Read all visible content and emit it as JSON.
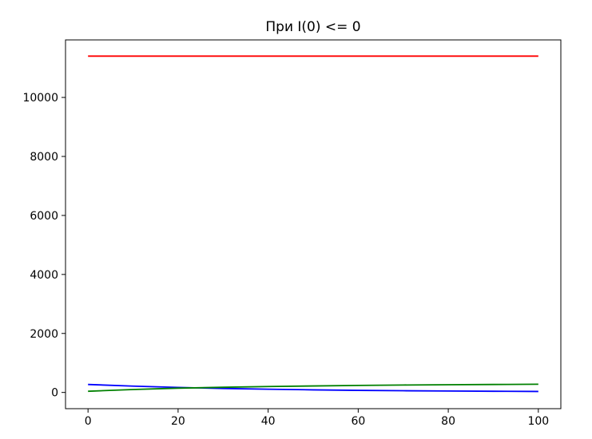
{
  "chart_data": {
    "type": "line",
    "title": "При I(0) <= 0",
    "xlabel": "",
    "ylabel": "",
    "xlim": [
      -5,
      105
    ],
    "ylim": [
      -550,
      11950
    ],
    "x_ticks": [
      0,
      20,
      40,
      60,
      80,
      100
    ],
    "y_ticks": [
      0,
      2000,
      4000,
      6000,
      8000,
      10000
    ],
    "grid": false,
    "legend": "none",
    "x": [
      0,
      10,
      20,
      30,
      40,
      50,
      60,
      70,
      80,
      90,
      100
    ],
    "series": [
      {
        "color": "#ff0000",
        "values": [
          11400,
          11400,
          11400,
          11400,
          11400,
          11400,
          11400,
          11400,
          11400,
          11400,
          11400
        ]
      },
      {
        "color": "#0000ff",
        "values": [
          270,
          215,
          170,
          135,
          110,
          88,
          70,
          58,
          48,
          40,
          33
        ]
      },
      {
        "color": "#008000",
        "values": [
          40,
          100,
          145,
          175,
          200,
          220,
          238,
          252,
          262,
          270,
          278
        ]
      }
    ]
  }
}
